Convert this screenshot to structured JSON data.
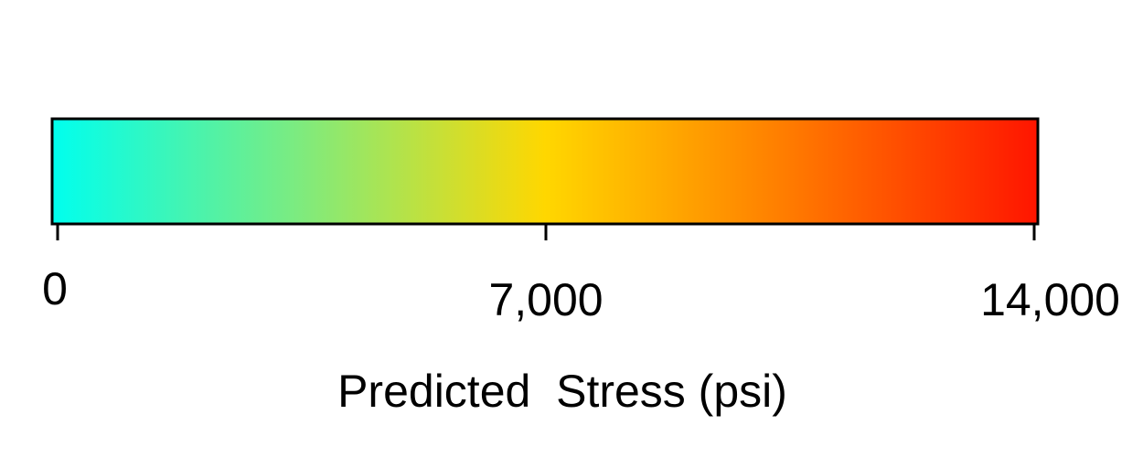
{
  "chart_data": {
    "type": "colorbar",
    "title": "",
    "xlabel": "Predicted  Stress (psi)",
    "ylabel": "",
    "range": [
      0,
      14000
    ],
    "ticks": [
      {
        "value": 0,
        "label": "0"
      },
      {
        "value": 7000,
        "label": "7,000"
      },
      {
        "value": 14000,
        "label": "14,000"
      }
    ],
    "colormap_stops": [
      {
        "value": 0,
        "color": "#00ffee"
      },
      {
        "value": 3500,
        "color": "#7deb7f"
      },
      {
        "value": 7000,
        "color": "#ffd700"
      },
      {
        "value": 10500,
        "color": "#ff7a00"
      },
      {
        "value": 14000,
        "color": "#ff1500"
      }
    ],
    "grid": false,
    "legend": "none"
  }
}
